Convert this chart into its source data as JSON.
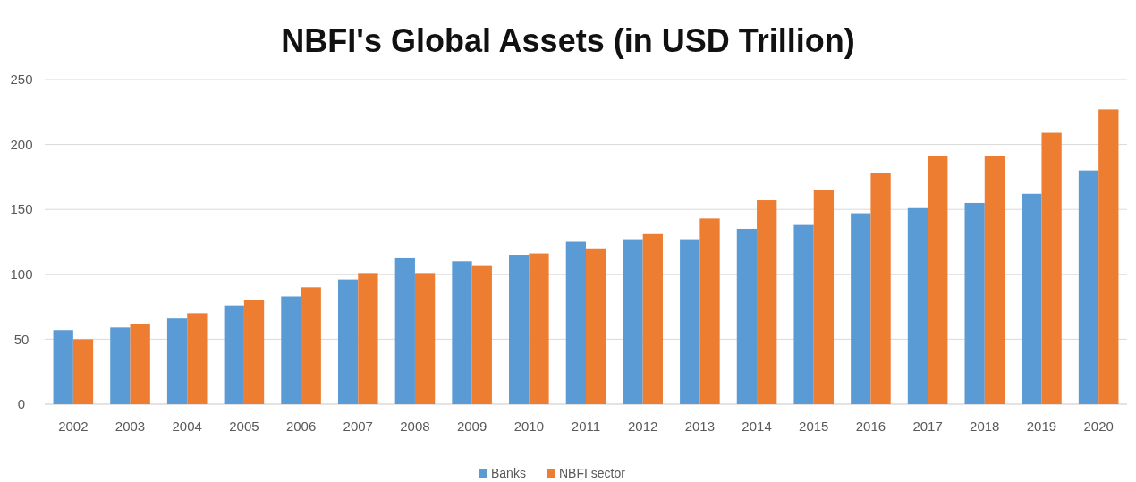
{
  "chart_data": {
    "type": "bar",
    "title": "NBFI's Global Assets (in USD Trillion)",
    "categories": [
      "2002",
      "2003",
      "2004",
      "2005",
      "2006",
      "2007",
      "2008",
      "2009",
      "2010",
      "2011",
      "2012",
      "2013",
      "2014",
      "2015",
      "2016",
      "2017",
      "2018",
      "2019",
      "2020"
    ],
    "series": [
      {
        "name": "Banks",
        "color": "#5b9bd5",
        "values": [
          57,
          59,
          66,
          76,
          83,
          96,
          113,
          110,
          115,
          125,
          127,
          127,
          135,
          138,
          147,
          151,
          155,
          162,
          180
        ]
      },
      {
        "name": "NBFI sector",
        "color": "#ed7d31",
        "values": [
          50,
          62,
          70,
          80,
          90,
          101,
          101,
          107,
          116,
          120,
          131,
          143,
          157,
          165,
          178,
          191,
          191,
          209,
          227
        ]
      }
    ],
    "ylim": [
      0,
      250
    ],
    "yticks": [
      0,
      50,
      100,
      150,
      200,
      250
    ],
    "grid": "y",
    "legend": "bottom"
  }
}
